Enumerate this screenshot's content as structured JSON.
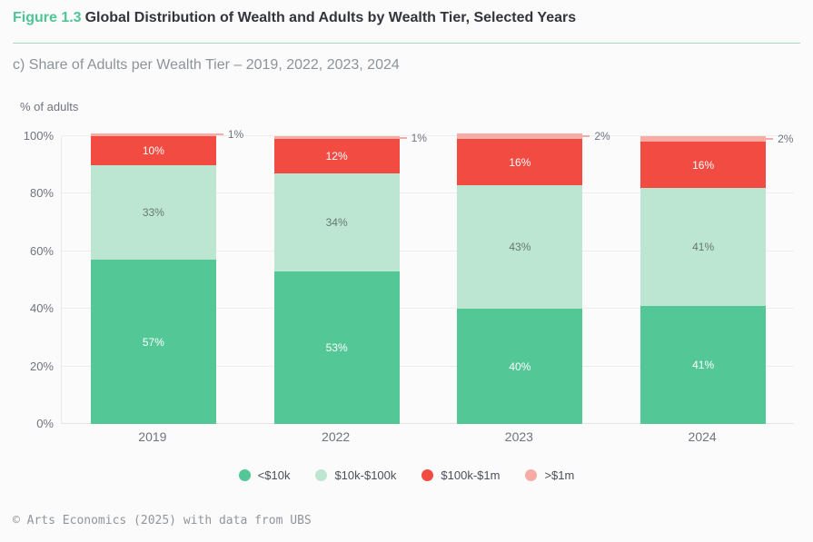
{
  "header": {
    "figure_label": "Figure 1.3",
    "title": "Global Distribution of Wealth and Adults by Wealth Tier, Selected Years"
  },
  "subtitle": "c) Share of Adults per Wealth Tier – 2019, 2022, 2023, 2024",
  "axis_title": "% of adults",
  "footer": "© Arts Economics (2025) with data from UBS",
  "colors": {
    "accent_green": "#4fc593",
    "divider": "#a5dcc2",
    "grid": "#ededee",
    "text_dark": "#33343c",
    "text_gray": "#8e939a",
    "tick_gray": "#6f747d"
  },
  "chart_data": {
    "type": "bar",
    "stacked": true,
    "title": "c) Share of Adults per Wealth Tier – 2019, 2022, 2023, 2024",
    "xlabel": "",
    "ylabel": "% of adults",
    "ylim": [
      0,
      100
    ],
    "yticks": [
      "0%",
      "20%",
      "40%",
      "60%",
      "80%",
      "100%"
    ],
    "grid": true,
    "legend_position": "bottom",
    "categories": [
      "2019",
      "2022",
      "2023",
      "2024"
    ],
    "series": [
      {
        "name": "<$10k",
        "color": "#53c795",
        "label_color": "#ffffff",
        "callout": false,
        "values": [
          57,
          53,
          40,
          41
        ]
      },
      {
        "name": "$10k-$100k",
        "color": "#bde6d2",
        "label_color": "#657872",
        "callout": false,
        "values": [
          33,
          34,
          43,
          41
        ]
      },
      {
        "name": "$100k-$1m",
        "color": "#f14b42",
        "label_color": "#ffffff",
        "callout": false,
        "values": [
          10,
          12,
          16,
          16
        ]
      },
      {
        "name": ">$1m",
        "color": "#f7aba5",
        "label_color": "#6f747d",
        "callout": true,
        "values": [
          1,
          1,
          2,
          2
        ]
      }
    ]
  }
}
